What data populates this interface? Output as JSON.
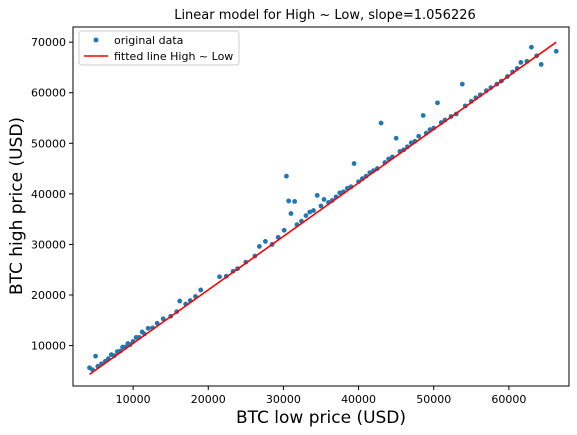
{
  "chart_data": {
    "type": "scatter",
    "title": "Linear model for High ~ Low, slope=1.056226",
    "xlabel": "BTC low price (USD)",
    "ylabel": "BTC high price (USD)",
    "xlim": [
      2000,
      68000
    ],
    "ylim": [
      2000,
      73000
    ],
    "xticks": [
      10000,
      20000,
      30000,
      40000,
      50000,
      60000
    ],
    "yticks": [
      10000,
      20000,
      30000,
      40000,
      50000,
      60000,
      70000
    ],
    "xtick_labels": [
      "10000",
      "20000",
      "30000",
      "40000",
      "50000",
      "60000"
    ],
    "ytick_labels": [
      "10000",
      "20000",
      "30000",
      "40000",
      "50000",
      "60000",
      "70000"
    ],
    "grid": false,
    "legend_position": "top-left",
    "series": [
      {
        "name": "original data",
        "kind": "points",
        "color": "#1f77b4",
        "points": [
          [
            4200,
            5600
          ],
          [
            4600,
            5200
          ],
          [
            5000,
            7900
          ],
          [
            5300,
            5900
          ],
          [
            5800,
            6400
          ],
          [
            6300,
            6900
          ],
          [
            6700,
            7400
          ],
          [
            7100,
            8200
          ],
          [
            7500,
            8000
          ],
          [
            7900,
            8800
          ],
          [
            8300,
            8900
          ],
          [
            8600,
            9700
          ],
          [
            9000,
            9700
          ],
          [
            9300,
            10400
          ],
          [
            9600,
            10200
          ],
          [
            10000,
            10800
          ],
          [
            10400,
            11600
          ],
          [
            10800,
            11600
          ],
          [
            11200,
            12700
          ],
          [
            11500,
            12300
          ],
          [
            12000,
            13400
          ],
          [
            12600,
            13500
          ],
          [
            13200,
            14400
          ],
          [
            14000,
            15300
          ],
          [
            15000,
            15800
          ],
          [
            15800,
            16700
          ],
          [
            16200,
            18800
          ],
          [
            17000,
            18200
          ],
          [
            17600,
            18900
          ],
          [
            18300,
            19700
          ],
          [
            19000,
            21000
          ],
          [
            21500,
            23600
          ],
          [
            22400,
            23700
          ],
          [
            23300,
            24700
          ],
          [
            23900,
            25200
          ],
          [
            25000,
            26500
          ],
          [
            26200,
            27700
          ],
          [
            26800,
            29600
          ],
          [
            27600,
            30600
          ],
          [
            28500,
            30000
          ],
          [
            29300,
            31400
          ],
          [
            30100,
            32800
          ],
          [
            30400,
            43500
          ],
          [
            30700,
            38600
          ],
          [
            31000,
            36100
          ],
          [
            31500,
            38500
          ],
          [
            31800,
            33900
          ],
          [
            32400,
            34600
          ],
          [
            33000,
            35700
          ],
          [
            33500,
            36400
          ],
          [
            34000,
            36700
          ],
          [
            34500,
            39700
          ],
          [
            35000,
            37600
          ],
          [
            35400,
            38900
          ],
          [
            36000,
            38300
          ],
          [
            36500,
            38700
          ],
          [
            37000,
            39400
          ],
          [
            37500,
            40200
          ],
          [
            38000,
            40400
          ],
          [
            38500,
            41100
          ],
          [
            39000,
            41400
          ],
          [
            39400,
            46000
          ],
          [
            40000,
            42400
          ],
          [
            40500,
            43000
          ],
          [
            41000,
            43500
          ],
          [
            41500,
            44200
          ],
          [
            42000,
            44600
          ],
          [
            42500,
            45000
          ],
          [
            43000,
            54000
          ],
          [
            43500,
            46200
          ],
          [
            44000,
            46900
          ],
          [
            44500,
            47300
          ],
          [
            45000,
            51000
          ],
          [
            45500,
            48400
          ],
          [
            46000,
            48700
          ],
          [
            46500,
            49300
          ],
          [
            47000,
            50100
          ],
          [
            47500,
            50400
          ],
          [
            48000,
            51400
          ],
          [
            48600,
            55500
          ],
          [
            49000,
            52000
          ],
          [
            49500,
            52700
          ],
          [
            50000,
            53000
          ],
          [
            50500,
            58000
          ],
          [
            51000,
            54100
          ],
          [
            51500,
            54600
          ],
          [
            52300,
            55300
          ],
          [
            53000,
            55800
          ],
          [
            53800,
            61700
          ],
          [
            54200,
            57400
          ],
          [
            55000,
            58300
          ],
          [
            55600,
            59000
          ],
          [
            56200,
            59600
          ],
          [
            57000,
            60400
          ],
          [
            57600,
            61000
          ],
          [
            58400,
            61700
          ],
          [
            59000,
            62300
          ],
          [
            59800,
            63200
          ],
          [
            60500,
            64100
          ],
          [
            61100,
            64800
          ],
          [
            61600,
            66000
          ],
          [
            62400,
            66200
          ],
          [
            63000,
            69000
          ],
          [
            63700,
            67300
          ],
          [
            64300,
            65600
          ],
          [
            66300,
            68200
          ]
        ]
      },
      {
        "name": "fitted line High ~ Low",
        "kind": "line",
        "color": "#ff0000",
        "slope": 1.056226,
        "x": [
          4200,
          66300
        ],
        "y": [
          4300,
          70000
        ]
      }
    ]
  }
}
